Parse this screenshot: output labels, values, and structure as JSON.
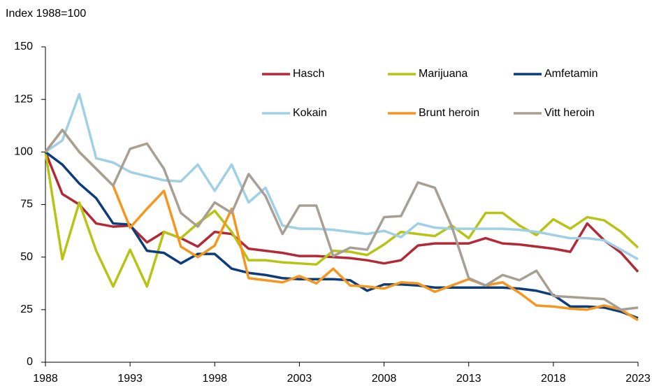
{
  "chart_data": {
    "type": "line",
    "y_label": "Index 1988=100",
    "x": [
      1988,
      1989,
      1990,
      1991,
      1992,
      1993,
      1994,
      1995,
      1996,
      1997,
      1998,
      1999,
      2000,
      2001,
      2002,
      2003,
      2004,
      2005,
      2006,
      2007,
      2008,
      2009,
      2010,
      2011,
      2012,
      2013,
      2014,
      2015,
      2016,
      2017,
      2018,
      2019,
      2020,
      2021,
      2022,
      2023
    ],
    "xlim": [
      1988,
      2023
    ],
    "xticks": [
      1988,
      1993,
      1998,
      2003,
      2008,
      2013,
      2018,
      2023
    ],
    "ylim": [
      0,
      150
    ],
    "yticks": [
      0,
      25,
      50,
      75,
      100,
      125,
      150
    ],
    "grid": false,
    "legend": "top-right",
    "series": [
      {
        "name": "Hasch",
        "color": "#b22a36",
        "values": [
          100,
          80,
          75,
          66,
          64.5,
          65,
          57,
          62,
          59,
          55,
          62,
          61,
          54,
          53,
          52,
          50.5,
          50.5,
          50,
          49.5,
          48.5,
          47,
          48.5,
          55.5,
          56.5,
          56.5,
          56.5,
          59,
          56.5,
          56,
          55,
          54,
          52.5,
          66,
          58,
          52,
          43
        ]
      },
      {
        "name": "Marijuana",
        "color": "#b8c414",
        "values": [
          100,
          49,
          76,
          53,
          36,
          53.5,
          36,
          62,
          59,
          66,
          72,
          62,
          48.5,
          48.5,
          47.5,
          47,
          46.5,
          53,
          52.5,
          51,
          56,
          62,
          61,
          60,
          65,
          59,
          71,
          71,
          65,
          60.5,
          68,
          63.5,
          69,
          67.5,
          62,
          54.5
        ]
      },
      {
        "name": "Amfetamin",
        "color": "#0c3c7c",
        "values": [
          100,
          94,
          85,
          78,
          66,
          65.5,
          53,
          52,
          47,
          51.5,
          51.5,
          44.5,
          42.5,
          41.5,
          40,
          39.5,
          39.5,
          39.5,
          39,
          34,
          37,
          37,
          36.5,
          35.5,
          35.5,
          35.5,
          35.5,
          35.5,
          35,
          34,
          32,
          26.5,
          26.5,
          26,
          24,
          21
        ]
      },
      {
        "name": "Kokain",
        "color": "#9fd0e6",
        "values": [
          100,
          105.5,
          127.5,
          97,
          95,
          90.5,
          88.5,
          86.5,
          86,
          94,
          81.5,
          94,
          76,
          83,
          65,
          63.5,
          63.5,
          63,
          62,
          61,
          62.5,
          59.5,
          66,
          64,
          63.5,
          63.5,
          63.5,
          63.5,
          63,
          62,
          60.5,
          59,
          59,
          58,
          53.5,
          49
        ]
      },
      {
        "name": "Brunt heroin",
        "color": "#f5961e",
        "values": [
          100,
          110.5,
          100,
          92,
          84,
          64,
          73,
          81.5,
          55,
          50,
          55.5,
          73,
          40,
          39,
          38,
          41,
          37.5,
          44.5,
          36.5,
          36,
          35,
          38,
          37.5,
          33.5,
          36.5,
          39.5,
          36.5,
          38,
          33,
          27,
          26.5,
          25.5,
          25,
          27,
          25,
          20
        ]
      },
      {
        "name": "Vitt heroin",
        "color": "#a89f94",
        "values": [
          100,
          110.5,
          100,
          92,
          84,
          101.5,
          104,
          92,
          71,
          64.5,
          76,
          71,
          89.5,
          79,
          61,
          74.5,
          74.5,
          50.5,
          54.5,
          53.5,
          69,
          69.5,
          85.5,
          83,
          64.5,
          40,
          36.5,
          41.5,
          39,
          43.5,
          31.5,
          31,
          30.5,
          30,
          25,
          26
        ]
      }
    ]
  }
}
